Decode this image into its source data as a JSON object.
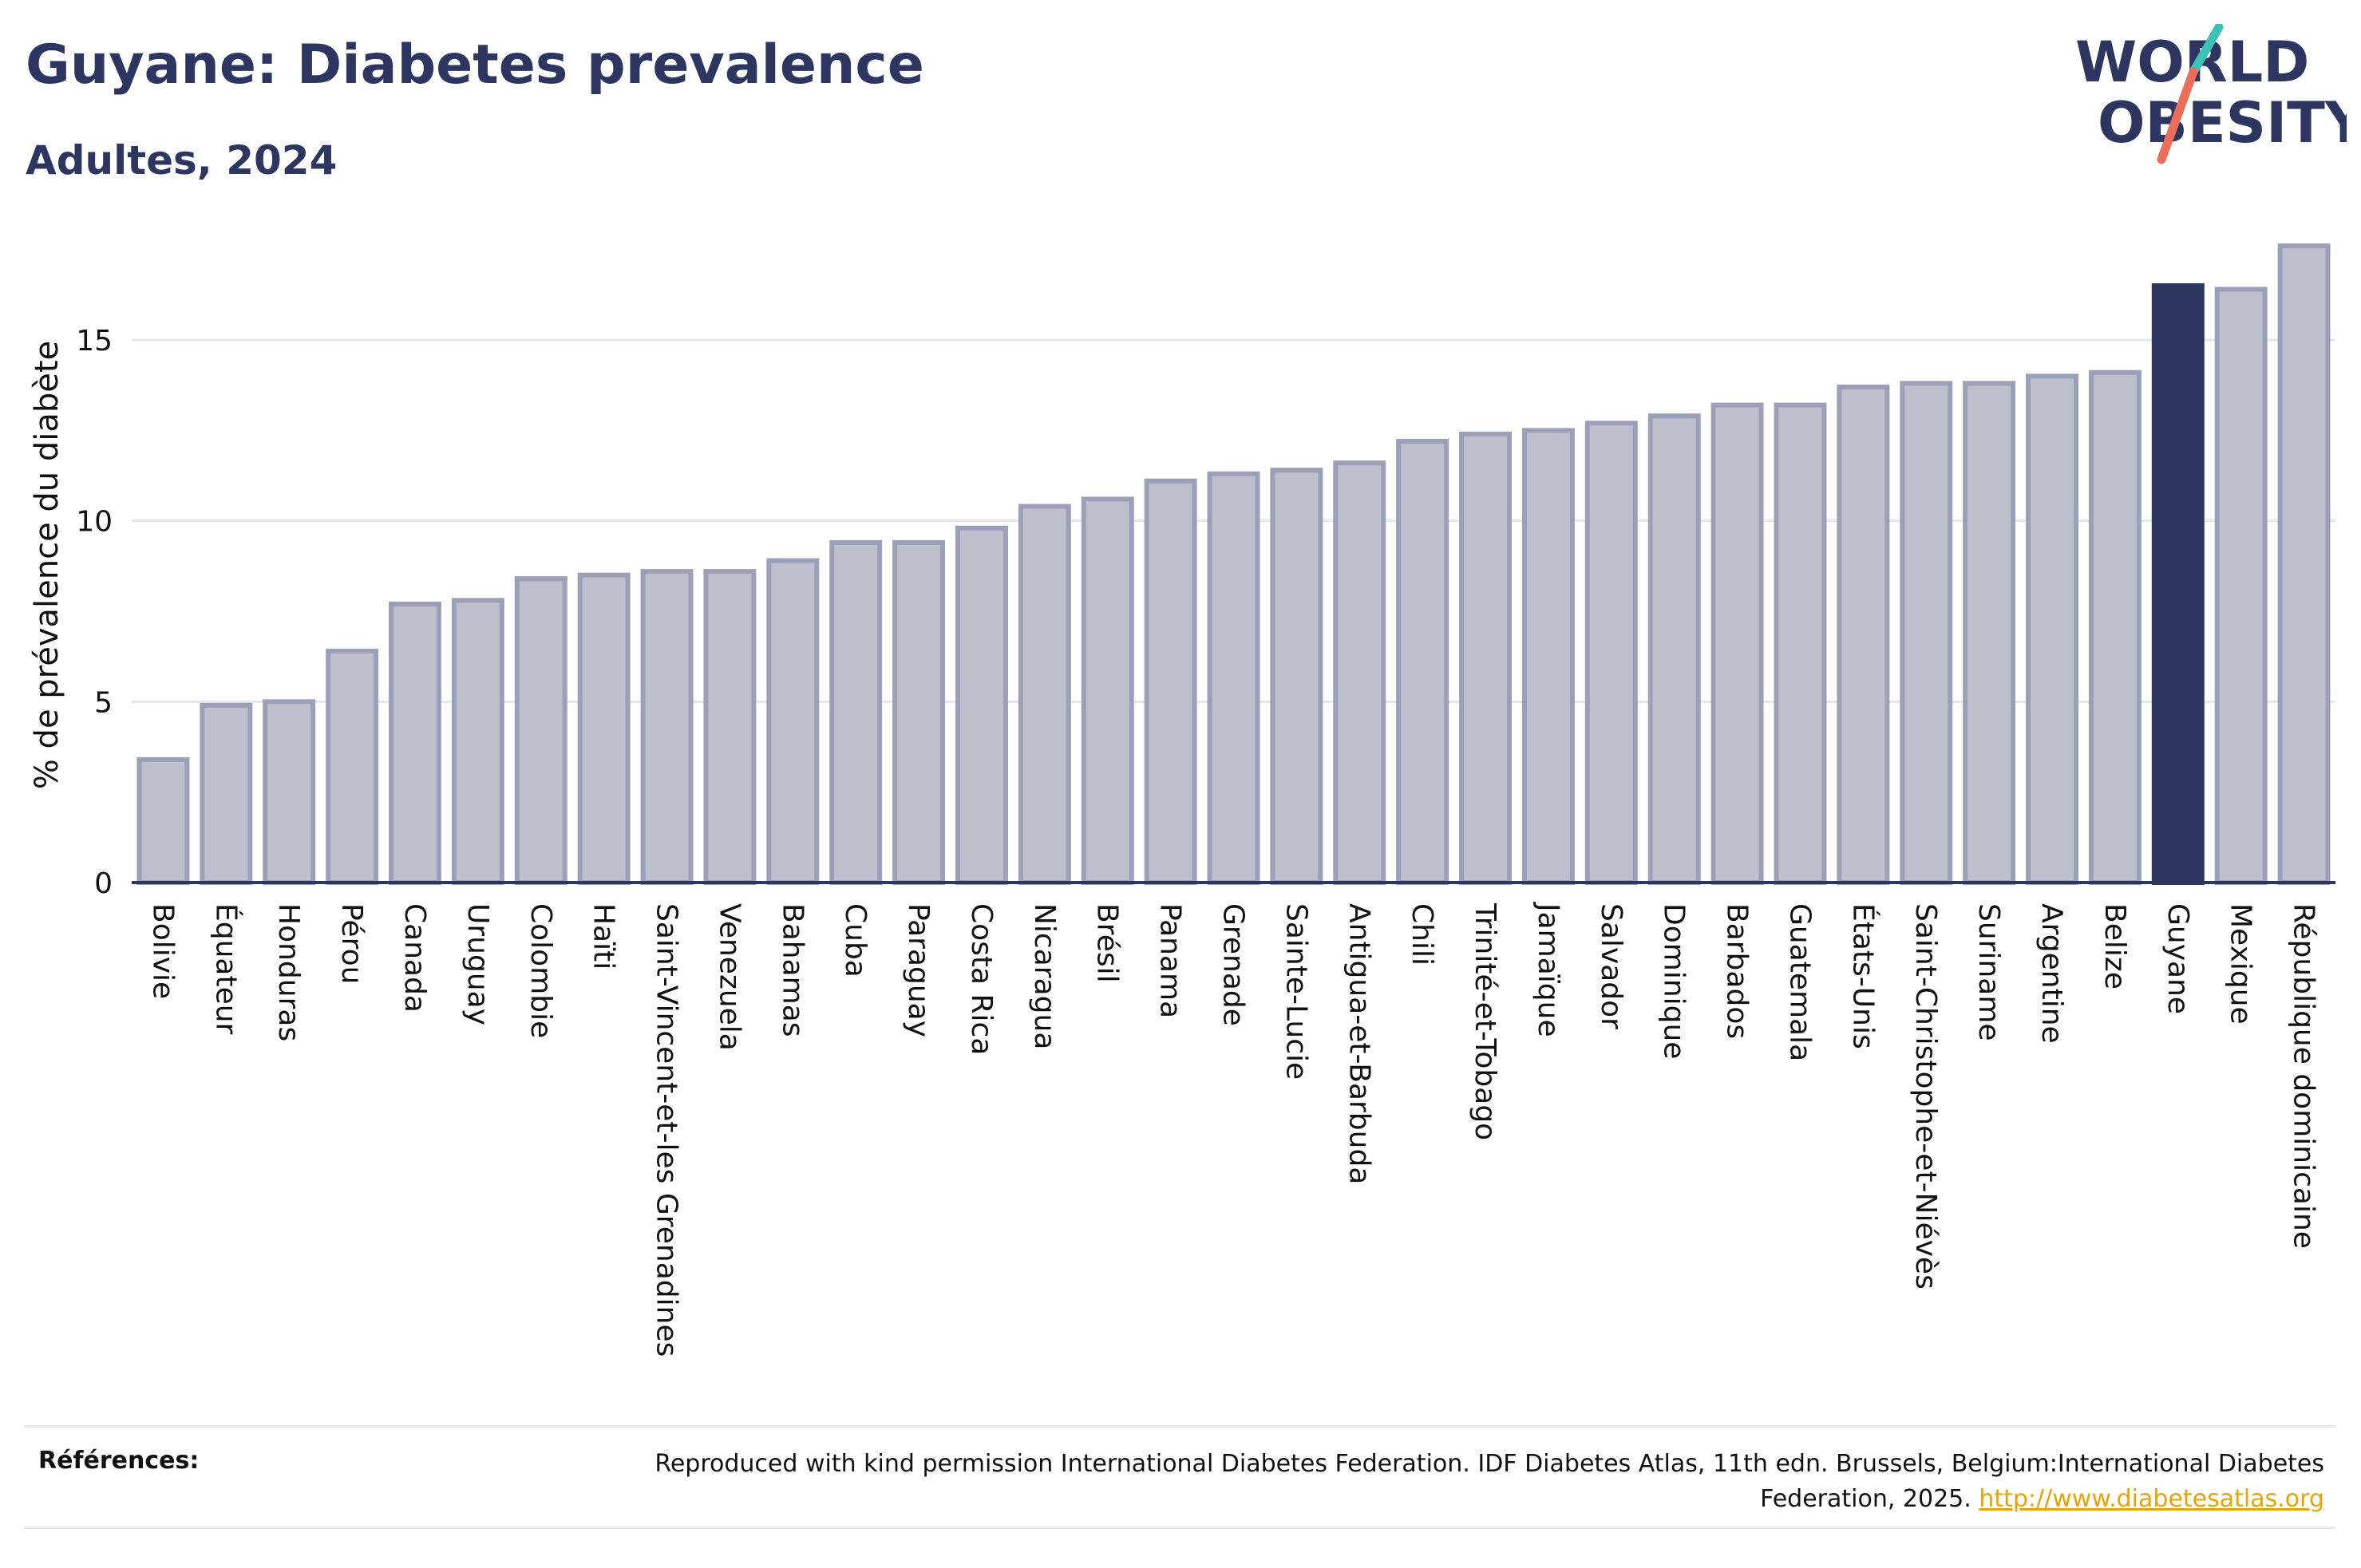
{
  "header": {
    "title": "Guyane: Diabetes prevalence",
    "subtitle": "Adultes, 2024"
  },
  "logo": {
    "line1": "WORLD",
    "line2": "OBESITY"
  },
  "references": {
    "label": "Références:",
    "text": "Reproduced with kind permission International Diabetes Federation. IDF Diabetes Atlas, 11th edn. Brussels, Belgium:International Diabetes Federation, 2025.",
    "link": "http://www.diabetesatlas.org"
  },
  "colors": {
    "bar": "#bcbfcc",
    "bar_border": "#9ba0b8",
    "highlight": "#2d3561",
    "axis": "#2d3561",
    "grid": "#e6e7ec"
  },
  "chart_data": {
    "type": "bar",
    "ylabel": "% de prévalence du diabète",
    "ylim": [
      0,
      18
    ],
    "yticks": [
      0,
      5,
      10,
      15
    ],
    "grid": true,
    "highlight": "Guyane",
    "categories": [
      "Bolivie",
      "Équateur",
      "Honduras",
      "Pérou",
      "Canada",
      "Uruguay",
      "Colombie",
      "Haïti",
      "Saint-Vincent-et-les Grenadines",
      "Venezuela",
      "Bahamas",
      "Cuba",
      "Paraguay",
      "Costa Rica",
      "Nicaragua",
      "Brésil",
      "Panama",
      "Grenade",
      "Sainte-Lucie",
      "Antigua-et-Barbuda",
      "Chili",
      "Trinité-et-Tobago",
      "Jamaïque",
      "Salvador",
      "Dominique",
      "Barbados",
      "Guatemala",
      "États-Unis",
      "Saint-Christophe-et-Niévès",
      "Suriname",
      "Argentine",
      "Belize",
      "Guyane",
      "Mexique",
      "République dominicaine"
    ],
    "values": [
      3.4,
      4.9,
      5.0,
      6.4,
      7.7,
      7.8,
      8.4,
      8.5,
      8.6,
      8.6,
      8.9,
      9.4,
      9.4,
      9.8,
      10.4,
      10.6,
      11.1,
      11.3,
      11.4,
      11.6,
      12.2,
      12.4,
      12.5,
      12.7,
      12.9,
      13.2,
      13.2,
      13.7,
      13.8,
      13.8,
      14.0,
      14.1,
      16.5,
      16.4,
      17.6
    ]
  }
}
